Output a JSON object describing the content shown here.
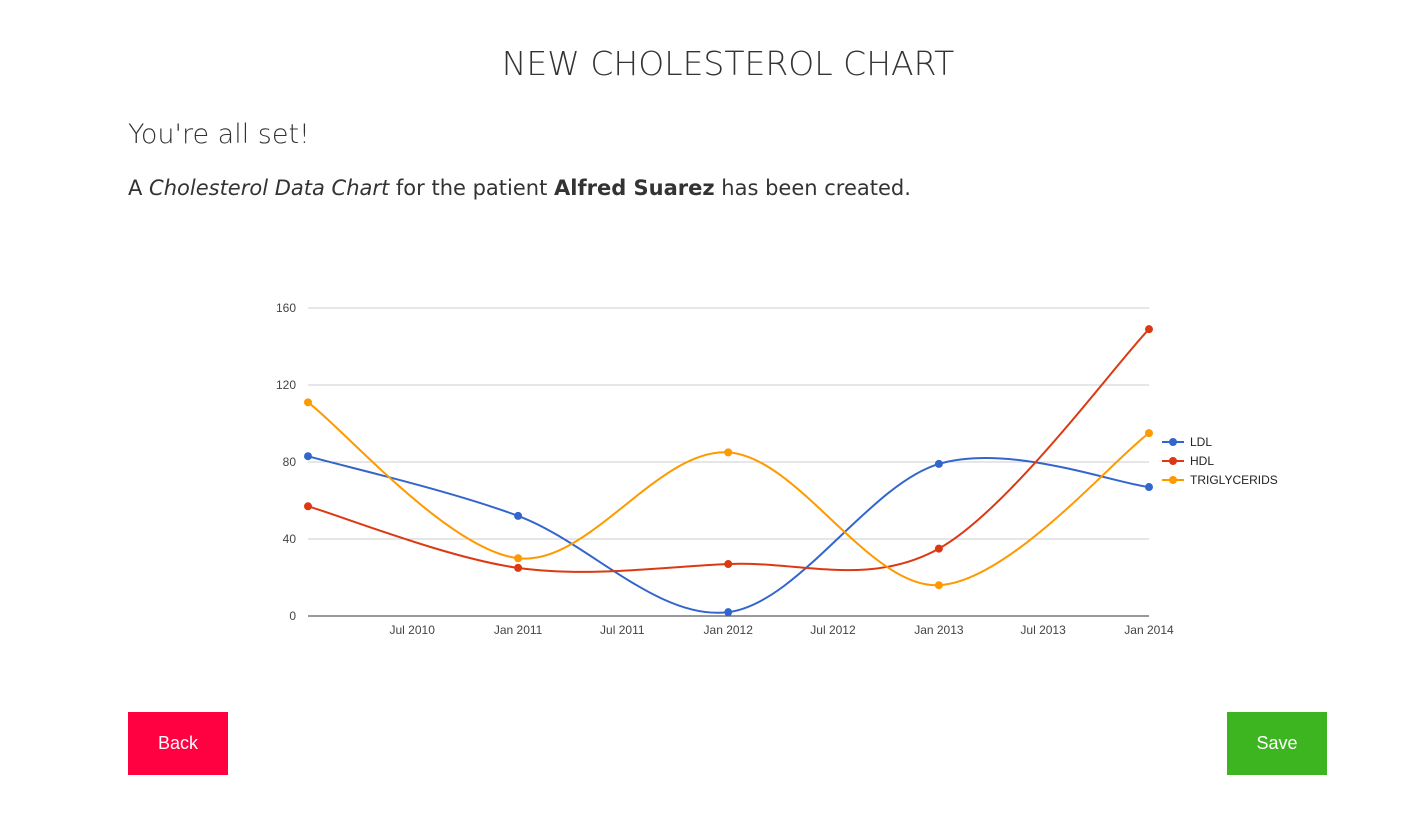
{
  "page": {
    "title": "NEW CHOLESTEROL CHART"
  },
  "confirmation": {
    "heading": "You're all set!",
    "message_prefix": "A ",
    "chart_name": "Cholesterol Data Chart",
    "message_middle": " for the patient ",
    "patient_name": "Alfred Suarez",
    "message_suffix": " has been created."
  },
  "buttons": {
    "back_label": "Back",
    "save_label": "Save",
    "back_color": "#ff0040",
    "save_color": "#3cb521"
  },
  "chart_data": {
    "type": "line",
    "title": "",
    "xlabel": "",
    "ylabel": "",
    "x": [
      "2010-01-01",
      "2011-01-01",
      "2012-01-01",
      "2013-01-01",
      "2014-01-01"
    ],
    "x_ticks": [
      "Jul 2010",
      "Jan 2011",
      "Jul 2011",
      "Jan 2012",
      "Jul 2012",
      "Jan 2013",
      "Jul 2013",
      "Jan 2014"
    ],
    "x_tick_dates": [
      "2010-07-01",
      "2011-01-01",
      "2011-07-01",
      "2012-01-01",
      "2012-07-01",
      "2013-01-01",
      "2013-07-01",
      "2014-01-01"
    ],
    "xlim": [
      "2010-01-01",
      "2014-01-01"
    ],
    "ylim": [
      0,
      160
    ],
    "y_ticks": [
      0,
      40,
      80,
      120,
      160
    ],
    "grid": true,
    "legend_position": "right",
    "smooth": true,
    "series": [
      {
        "name": "LDL",
        "color": "#3366cc",
        "values": [
          83,
          52,
          2,
          79,
          67
        ]
      },
      {
        "name": "HDL",
        "color": "#dc3912",
        "values": [
          57,
          25,
          27,
          35,
          149
        ]
      },
      {
        "name": "TRIGLYCERIDS",
        "color": "#ff9900",
        "values": [
          111,
          30,
          85,
          16,
          95
        ]
      }
    ]
  }
}
